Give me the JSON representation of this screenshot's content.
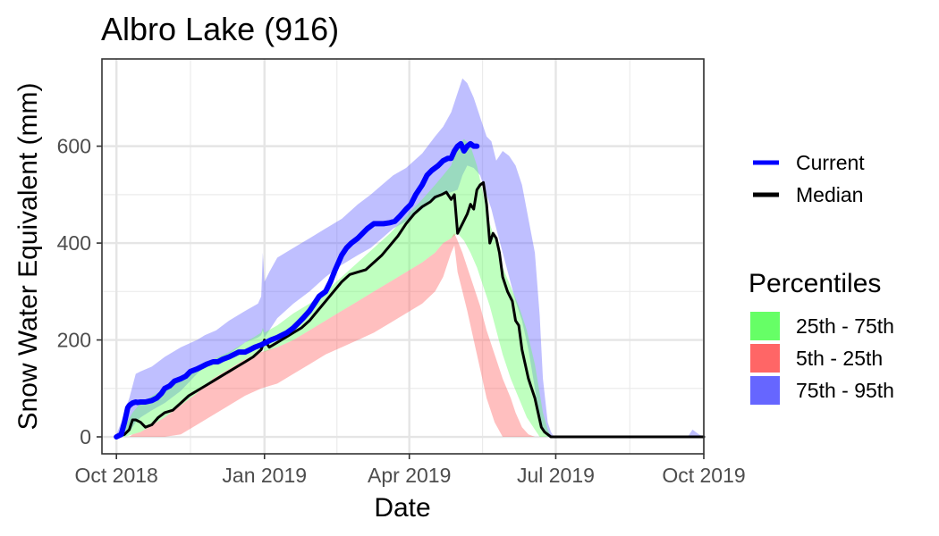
{
  "chart_data": {
    "type": "area",
    "title": "Albro Lake (916)",
    "xlabel": "Date",
    "ylabel": "Snow Water Equivalent (mm)",
    "x_unit": "days since Oct 1 2018",
    "xlim": [
      -9,
      365
    ],
    "ylim": [
      -35,
      780
    ],
    "x_ticks": [
      {
        "label": "Oct 2018",
        "day": 0
      },
      {
        "label": "Jan 2019",
        "day": 92
      },
      {
        "label": "Apr 2019",
        "day": 182
      },
      {
        "label": "Jul 2019",
        "day": 273
      },
      {
        "label": "Oct 2019",
        "day": 365
      }
    ],
    "y_ticks": [
      0,
      200,
      400,
      600
    ],
    "grid": true,
    "legend": {
      "lines": [
        {
          "label": "Current",
          "color": "#0000ff"
        },
        {
          "label": "Median",
          "color": "#000000"
        }
      ],
      "percentiles_title": "Percentiles",
      "bands": [
        {
          "label": "25th - 75th",
          "color": "#66ff66"
        },
        {
          "label": "5th - 25th",
          "color": "#ff6666"
        },
        {
          "label": "75th - 95th",
          "color": "#6666ff"
        }
      ],
      "position": "right"
    },
    "series": [
      {
        "name": "75th - 95th",
        "role": "band",
        "color": "#6666ff",
        "x": [
          0,
          3,
          8,
          12,
          15,
          22,
          30,
          40,
          50,
          55,
          62,
          70,
          80,
          88,
          90,
          91,
          92,
          95,
          100,
          110,
          120,
          130,
          140,
          150,
          158,
          165,
          172,
          180,
          190,
          198,
          203,
          208,
          212,
          215,
          218,
          222,
          226,
          230,
          233,
          236,
          240,
          244,
          248,
          252,
          256,
          260,
          263,
          265,
          268,
          270,
          272,
          275,
          280,
          290,
          300,
          320,
          340,
          355,
          358,
          360,
          362,
          365
        ],
        "lower": [
          0,
          0,
          10,
          30,
          40,
          55,
          70,
          95,
          130,
          145,
          155,
          170,
          195,
          205,
          210,
          220,
          205,
          220,
          245,
          275,
          300,
          330,
          355,
          375,
          390,
          410,
          430,
          445,
          470,
          490,
          500,
          505,
          510,
          540,
          560,
          555,
          540,
          500,
          470,
          430,
          380,
          330,
          280,
          240,
          180,
          100,
          40,
          15,
          0,
          0,
          0,
          0,
          0,
          0,
          0,
          0,
          0,
          0,
          0,
          0,
          0,
          0
        ],
        "upper": [
          5,
          30,
          80,
          130,
          135,
          145,
          165,
          185,
          200,
          210,
          220,
          240,
          260,
          275,
          290,
          380,
          320,
          340,
          370,
          390,
          410,
          430,
          450,
          480,
          500,
          520,
          540,
          555,
          585,
          620,
          640,
          670,
          710,
          740,
          730,
          700,
          660,
          620,
          610,
          570,
          590,
          580,
          560,
          520,
          450,
          380,
          250,
          120,
          30,
          10,
          0,
          0,
          0,
          0,
          0,
          0,
          0,
          0,
          15,
          10,
          5,
          0
        ]
      },
      {
        "name": "25th - 75th",
        "role": "band",
        "color": "#66ff66",
        "x": [
          0,
          5,
          10,
          15,
          20,
          30,
          40,
          50,
          60,
          70,
          80,
          90,
          91,
          92,
          100,
          110,
          120,
          130,
          140,
          150,
          160,
          170,
          180,
          190,
          198,
          203,
          208,
          212,
          216,
          220,
          224,
          228,
          232,
          236,
          240,
          245,
          250,
          255,
          260,
          263,
          265,
          268,
          270,
          272
        ],
        "lower": [
          0,
          0,
          5,
          10,
          20,
          40,
          65,
          90,
          120,
          140,
          160,
          175,
          185,
          175,
          185,
          200,
          220,
          240,
          260,
          280,
          300,
          320,
          340,
          360,
          380,
          400,
          410,
          420,
          405,
          380,
          350,
          310,
          270,
          220,
          170,
          120,
          80,
          40,
          15,
          0,
          0,
          0,
          0,
          0
        ],
        "upper": [
          0,
          20,
          50,
          70,
          80,
          100,
          120,
          140,
          160,
          175,
          195,
          215,
          225,
          215,
          230,
          255,
          275,
          300,
          330,
          360,
          390,
          420,
          455,
          490,
          520,
          540,
          560,
          600,
          615,
          600,
          560,
          500,
          440,
          400,
          350,
          310,
          270,
          220,
          150,
          90,
          50,
          15,
          0,
          0
        ]
      },
      {
        "name": "5th - 25th",
        "role": "band",
        "color": "#ff6666",
        "x": [
          8,
          10,
          15,
          20,
          30,
          40,
          50,
          60,
          70,
          80,
          90,
          100,
          110,
          120,
          130,
          140,
          150,
          160,
          170,
          180,
          190,
          198,
          203,
          208,
          210,
          212,
          215,
          218,
          222,
          226,
          230,
          235,
          240,
          245,
          248,
          252,
          256,
          260
        ],
        "lower": [
          0,
          0,
          0,
          0,
          0,
          5,
          25,
          45,
          65,
          85,
          100,
          110,
          130,
          150,
          170,
          185,
          200,
          215,
          235,
          255,
          275,
          300,
          330,
          380,
          395,
          340,
          300,
          260,
          200,
          140,
          80,
          30,
          0,
          0,
          0,
          0,
          0,
          0
        ],
        "upper": [
          0,
          5,
          10,
          20,
          40,
          65,
          90,
          120,
          140,
          160,
          175,
          185,
          200,
          220,
          240,
          260,
          280,
          300,
          320,
          340,
          360,
          380,
          400,
          410,
          420,
          405,
          380,
          350,
          310,
          270,
          220,
          170,
          120,
          80,
          50,
          20,
          5,
          0
        ]
      },
      {
        "name": "Current",
        "role": "line",
        "color": "#0000ff",
        "x": [
          0,
          3,
          5,
          7,
          8,
          10,
          12,
          13,
          15,
          18,
          22,
          25,
          28,
          30,
          33,
          36,
          40,
          43,
          46,
          50,
          53,
          56,
          60,
          63,
          66,
          70,
          73,
          76,
          80,
          83,
          86,
          90,
          93,
          96,
          100,
          103,
          106,
          110,
          113,
          116,
          120,
          123,
          126,
          130,
          133,
          136,
          140,
          143,
          146,
          150,
          153,
          156,
          160,
          163,
          166,
          170,
          173,
          176,
          180,
          183,
          186,
          190,
          193,
          196,
          200,
          203,
          206,
          208,
          210,
          212,
          214,
          216,
          218,
          220,
          222,
          224
        ],
        "y": [
          0,
          5,
          30,
          60,
          65,
          70,
          72,
          71,
          72,
          72,
          75,
          80,
          90,
          100,
          105,
          115,
          120,
          125,
          135,
          140,
          145,
          150,
          155,
          155,
          160,
          165,
          170,
          175,
          175,
          180,
          185,
          190,
          195,
          200,
          205,
          210,
          215,
          225,
          235,
          245,
          260,
          275,
          290,
          300,
          320,
          345,
          375,
          390,
          400,
          410,
          420,
          430,
          440,
          440,
          440,
          442,
          445,
          455,
          470,
          480,
          500,
          520,
          540,
          550,
          560,
          570,
          575,
          575,
          590,
          600,
          605,
          590,
          600,
          605,
          600,
          600
        ]
      },
      {
        "name": "Median",
        "role": "line",
        "color": "#000000",
        "x": [
          0,
          5,
          8,
          10,
          12,
          15,
          18,
          22,
          26,
          30,
          35,
          40,
          45,
          50,
          55,
          60,
          65,
          70,
          75,
          80,
          85,
          90,
          92,
          95,
          100,
          105,
          110,
          115,
          120,
          125,
          130,
          135,
          140,
          145,
          150,
          155,
          160,
          165,
          170,
          175,
          180,
          185,
          190,
          195,
          198,
          202,
          205,
          208,
          210,
          212,
          215,
          218,
          220,
          222,
          224,
          226,
          228,
          230,
          232,
          234,
          236,
          238,
          240,
          243,
          246,
          248,
          250,
          252,
          254,
          256,
          258,
          260,
          262,
          264,
          266,
          268,
          270,
          280,
          300,
          320,
          340,
          360,
          365
        ],
        "y": [
          0,
          5,
          15,
          35,
          35,
          30,
          20,
          25,
          40,
          50,
          55,
          70,
          85,
          95,
          105,
          115,
          125,
          135,
          145,
          155,
          165,
          180,
          200,
          185,
          195,
          205,
          215,
          225,
          240,
          260,
          280,
          300,
          320,
          335,
          340,
          345,
          360,
          375,
          395,
          415,
          440,
          460,
          475,
          485,
          495,
          500,
          505,
          490,
          500,
          420,
          440,
          460,
          480,
          470,
          510,
          520,
          525,
          480,
          400,
          420,
          410,
          380,
          330,
          300,
          280,
          240,
          230,
          180,
          150,
          120,
          100,
          80,
          50,
          20,
          10,
          5,
          0,
          0,
          0,
          0,
          0,
          0,
          0
        ]
      }
    ]
  }
}
